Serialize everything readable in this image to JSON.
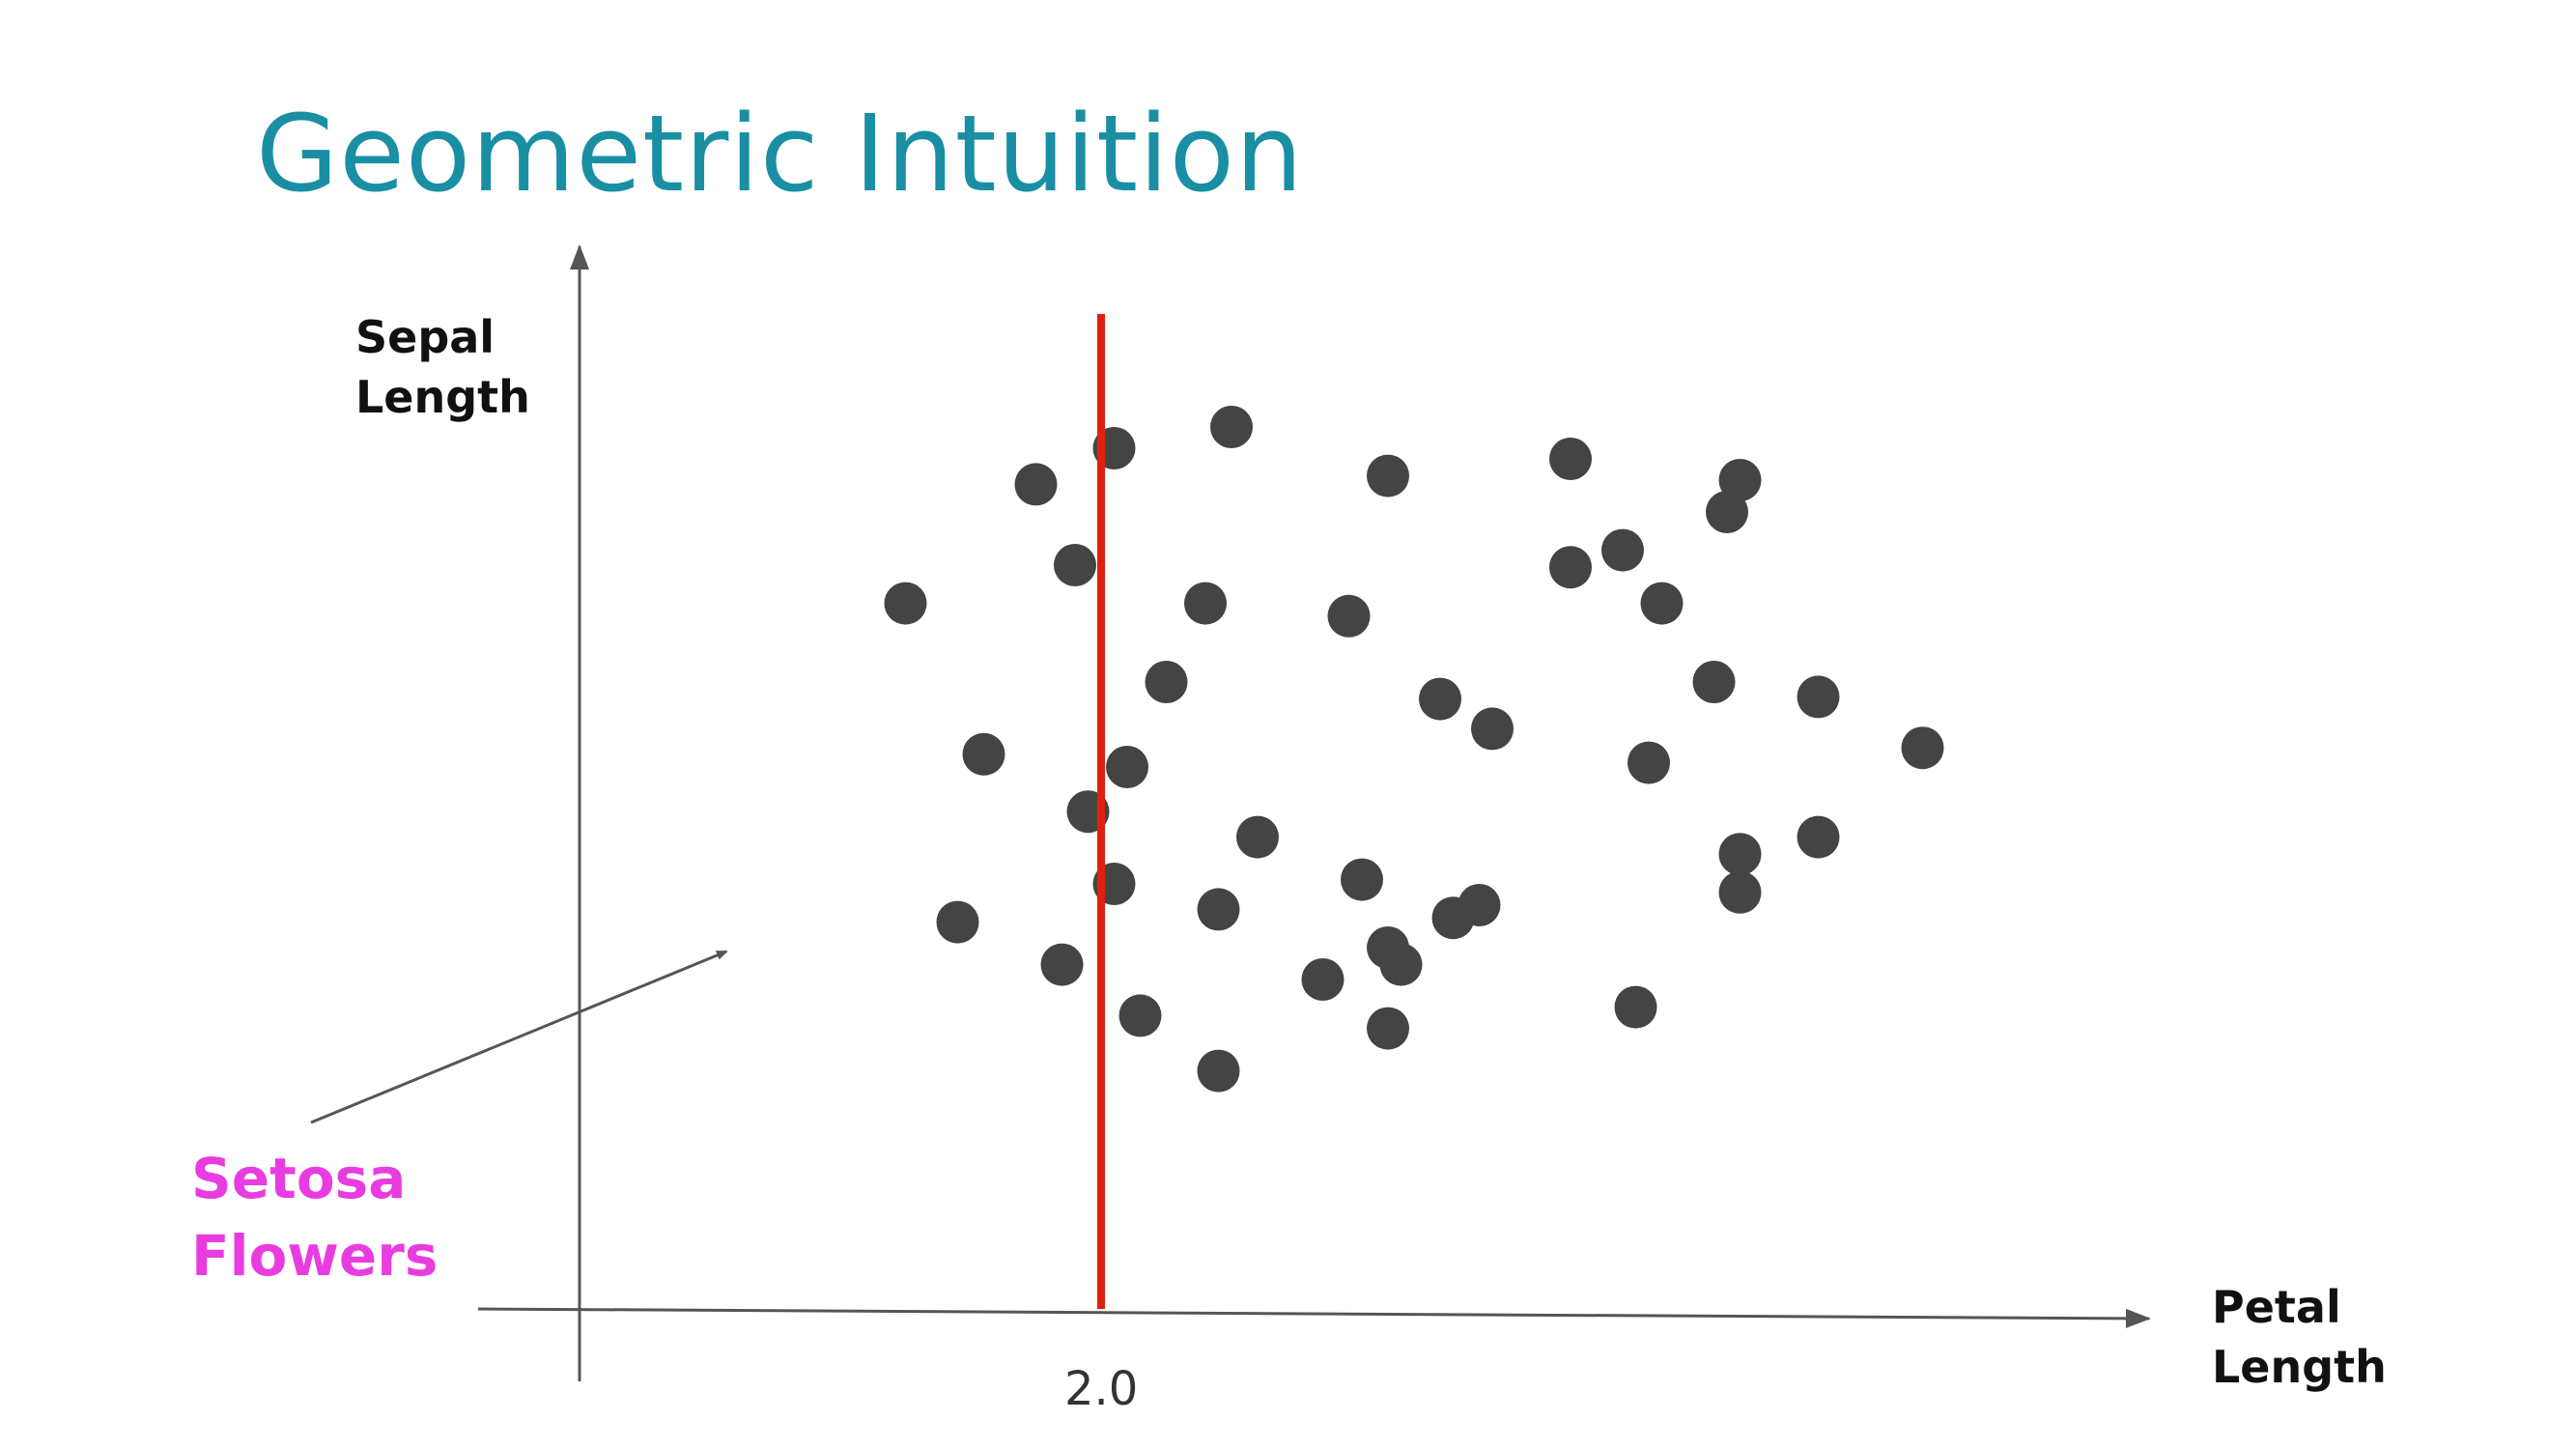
{
  "title": "Geometric Intuition",
  "colors": {
    "title": "#1a8fa3",
    "points": "#444444",
    "boundary": "#e0200e",
    "annotation": "#e83ce0",
    "axis": "#555555"
  },
  "chart_data": {
    "type": "scatter",
    "title": "Geometric Intuition",
    "xlabel": [
      "Petal",
      "Length"
    ],
    "ylabel": [
      "Sepal",
      "Length"
    ],
    "x_ticks": [
      "2.0"
    ],
    "decision_boundary": {
      "orientation": "vertical",
      "x": 2.0
    },
    "annotation": {
      "lines": [
        "Setosa",
        "Flowers"
      ],
      "arrow": true
    },
    "xlim": [
      0.0,
      6.0
    ],
    "ylim": [
      0.0,
      5.0
    ],
    "points": [
      [
        1.25,
        3.32
      ],
      [
        1.55,
        2.61
      ],
      [
        1.45,
        1.82
      ],
      [
        1.85,
        1.62
      ],
      [
        2.05,
        2.0
      ],
      [
        1.95,
        2.34
      ],
      [
        1.75,
        3.88
      ],
      [
        1.9,
        3.5
      ],
      [
        2.25,
        2.95
      ],
      [
        2.1,
        2.55
      ],
      [
        2.15,
        1.38
      ],
      [
        2.45,
        1.88
      ],
      [
        2.05,
        4.05
      ],
      [
        2.5,
        4.15
      ],
      [
        2.4,
        3.32
      ],
      [
        2.6,
        2.22
      ],
      [
        3.0,
        2.02
      ],
      [
        2.95,
        3.26
      ],
      [
        3.1,
        1.7
      ],
      [
        3.3,
        2.87
      ],
      [
        3.1,
        3.92
      ],
      [
        3.5,
        2.73
      ],
      [
        3.45,
        1.9
      ],
      [
        2.85,
        1.55
      ],
      [
        3.1,
        1.32
      ],
      [
        3.15,
        1.62
      ],
      [
        4.35,
        2.95
      ],
      [
        3.8,
        3.49
      ],
      [
        4.0,
        3.57
      ],
      [
        4.15,
        3.32
      ],
      [
        4.1,
        2.57
      ],
      [
        4.45,
        1.96
      ],
      [
        4.45,
        2.14
      ],
      [
        4.05,
        1.42
      ],
      [
        3.35,
        1.84
      ],
      [
        4.4,
        3.75
      ],
      [
        4.45,
        3.9
      ],
      [
        3.8,
        4.0
      ],
      [
        4.75,
        2.88
      ],
      [
        4.75,
        2.22
      ],
      [
        5.15,
        2.64
      ],
      [
        2.45,
        1.12
      ]
    ]
  }
}
